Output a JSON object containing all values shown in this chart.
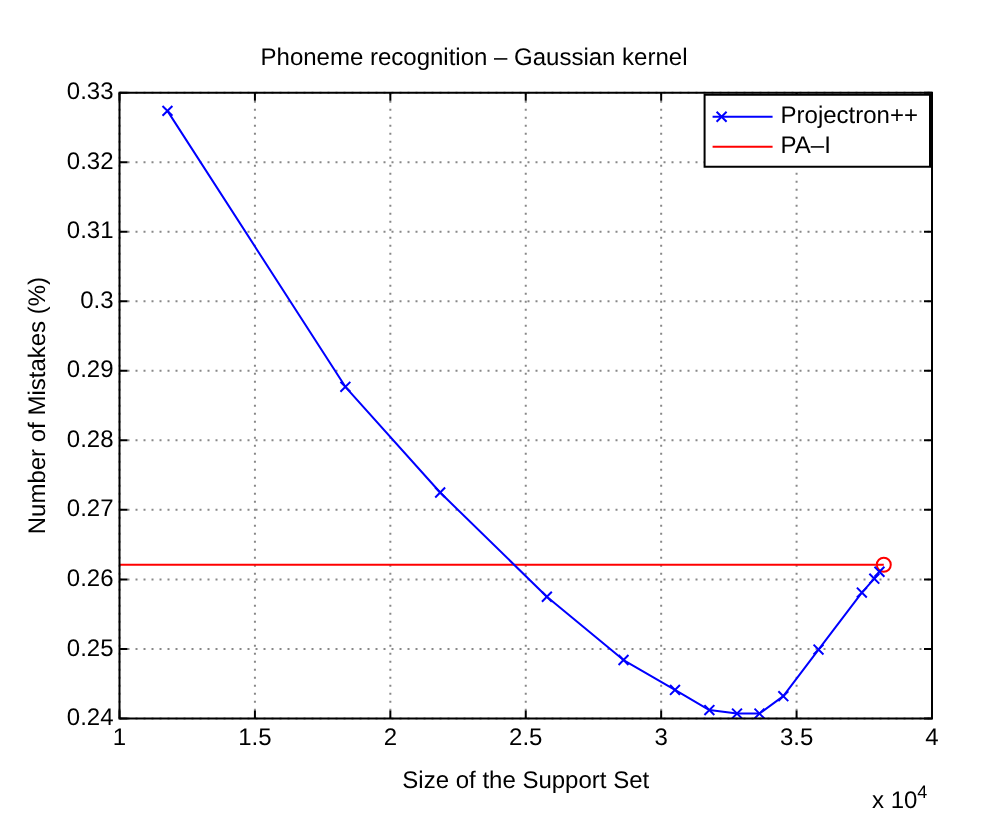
{
  "chart_data": {
    "type": "line",
    "title": "Phoneme recognition – Gaussian kernel",
    "xlabel": "Size of the Support Set",
    "ylabel": "Number of Mistakes (%)",
    "xlim": [
      1,
      4
    ],
    "xticks": [
      1,
      1.5,
      2,
      2.5,
      3,
      3.5,
      4
    ],
    "ylim": [
      0.24,
      0.33
    ],
    "yticks": [
      0.24,
      0.25,
      0.26,
      0.27,
      0.28,
      0.29,
      0.3,
      0.31,
      0.32,
      0.33
    ],
    "grid": true,
    "legend": "top right",
    "annotations": [
      "x 10$^{4}$"
    ],
    "series": [
      {
        "name": "Projectron++",
        "color": "#0000ff",
        "marker": "cross",
        "x": [
          1.177,
          1.834,
          2.184,
          2.578,
          2.861,
          3.051,
          3.178,
          3.28,
          3.363,
          3.451,
          3.581,
          3.741,
          3.787,
          3.806
        ],
        "values": [
          0.3274,
          0.2877,
          0.2725,
          0.2575,
          0.2484,
          0.2441,
          0.2412,
          0.2407,
          0.2407,
          0.2432,
          0.2499,
          0.2581,
          0.2601,
          0.2611
        ]
      },
      {
        "name": "PA–I",
        "color": "#ff0000",
        "marker": "circle",
        "x": [
          1,
          3.822
        ],
        "values": [
          0.2621,
          0.2621
        ]
      }
    ]
  }
}
